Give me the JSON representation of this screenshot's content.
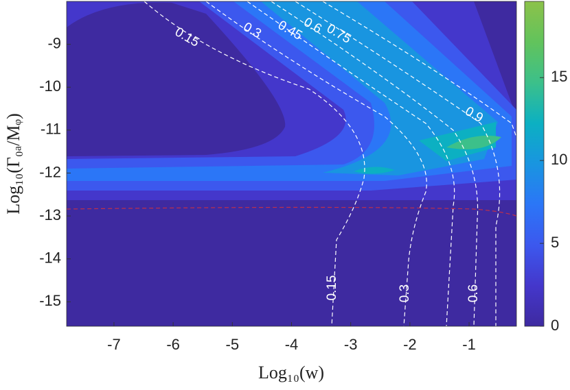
{
  "chart_data": {
    "type": "contour",
    "xlabel": "Log₁₀(w)",
    "ylabel": "Log₁₀(Γ₀ₐ/Mᵩ)",
    "xlim": [
      -7.8,
      -0.2
    ],
    "xticks": [
      -7,
      -6,
      -5,
      -4,
      -3,
      -2,
      -1
    ],
    "ylim": [
      -15.57,
      -8
    ],
    "yticks": [
      -15,
      -14,
      -13,
      -12,
      -11,
      -10,
      -9
    ],
    "clim": [
      0,
      19.6
    ],
    "cticks": [
      0,
      5,
      10,
      15
    ],
    "colormap": [
      "#3e2aa0",
      "#4437cb",
      "#3c58ee",
      "#2b76f7",
      "#1995e0",
      "#0cb0c2",
      "#3cc08a",
      "#62c35c",
      "#8cc24a"
    ],
    "contour_labels": [
      0.15,
      0.3,
      0.45,
      0.6,
      0.75,
      0.9,
      0.15,
      0.3,
      0.6
    ]
  }
}
